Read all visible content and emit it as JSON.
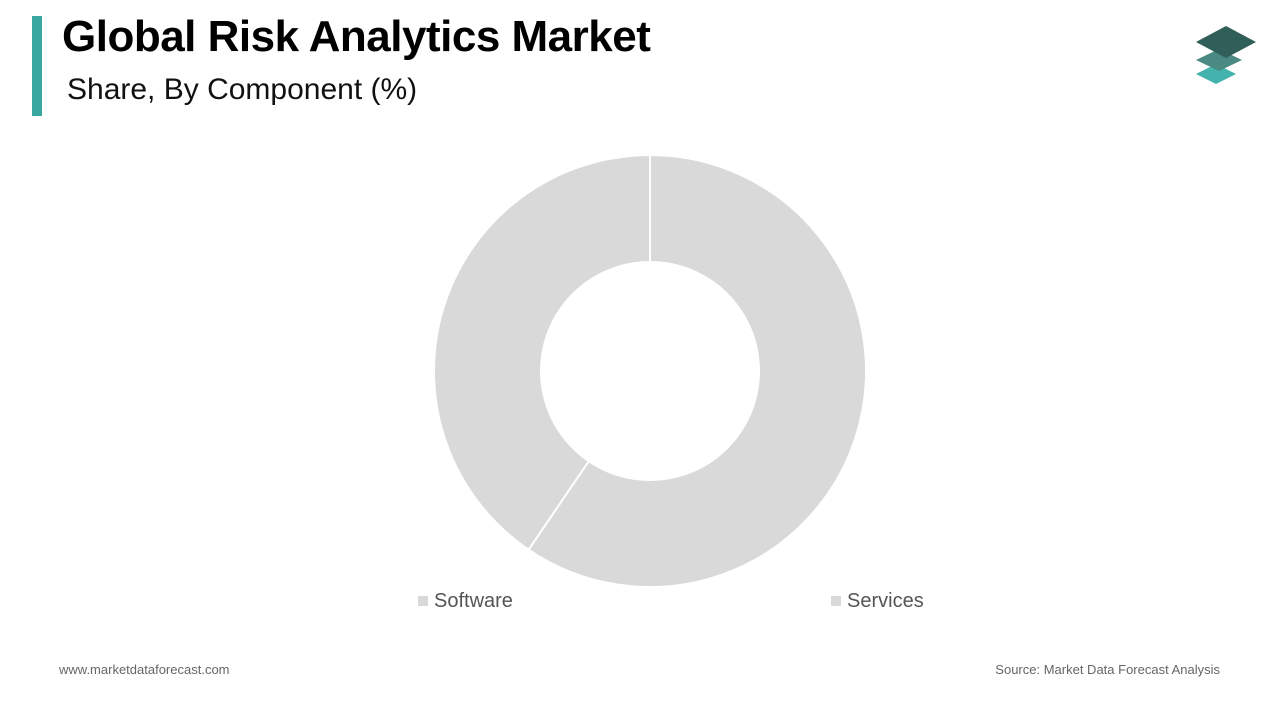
{
  "header": {
    "title": "Global Risk Analytics Market",
    "subtitle": "Share, By Component (%)"
  },
  "colors": {
    "accent": "#3aa6a0",
    "slice": "#d9d9d9",
    "separator": "#ffffff",
    "logo_dark": "#2f5f58",
    "logo_mid": "#4a8a82",
    "logo_light": "#45b3ad"
  },
  "logo": {
    "icon": "layers-icon"
  },
  "chart_data": {
    "type": "pie",
    "variant": "donut",
    "title": "Global Risk Analytics Market",
    "subtitle": "Share, By Component (%)",
    "categories": [
      "Services",
      "Software"
    ],
    "values": [
      59.5,
      40.5
    ],
    "legend": [
      {
        "label": "Software",
        "color": "#d9d9d9"
      },
      {
        "label": "Services",
        "color": "#d9d9d9"
      }
    ],
    "legend_position": "bottom"
  },
  "footer": {
    "website": "www.marketdataforecast.com",
    "source": "Source: Market Data Forecast Analysis"
  }
}
